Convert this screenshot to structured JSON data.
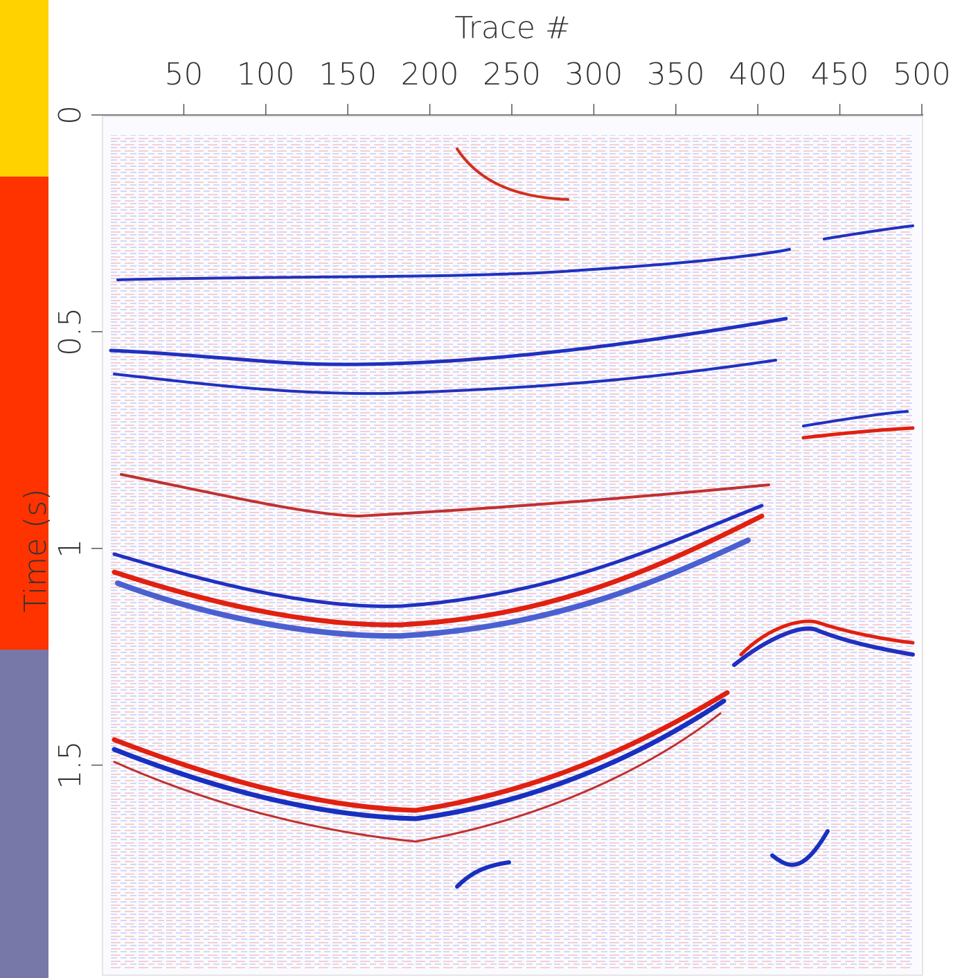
{
  "chart_data": {
    "type": "image",
    "x_label": "Trace #",
    "y_label": "Time (s)",
    "xlim": [
      0,
      500
    ],
    "xticks": [
      50,
      100,
      150,
      200,
      250,
      300,
      350,
      400,
      450,
      500
    ],
    "ylim": [
      0,
      1.98
    ],
    "yticks": [
      0,
      0.5,
      1,
      1.5
    ]
  }
}
